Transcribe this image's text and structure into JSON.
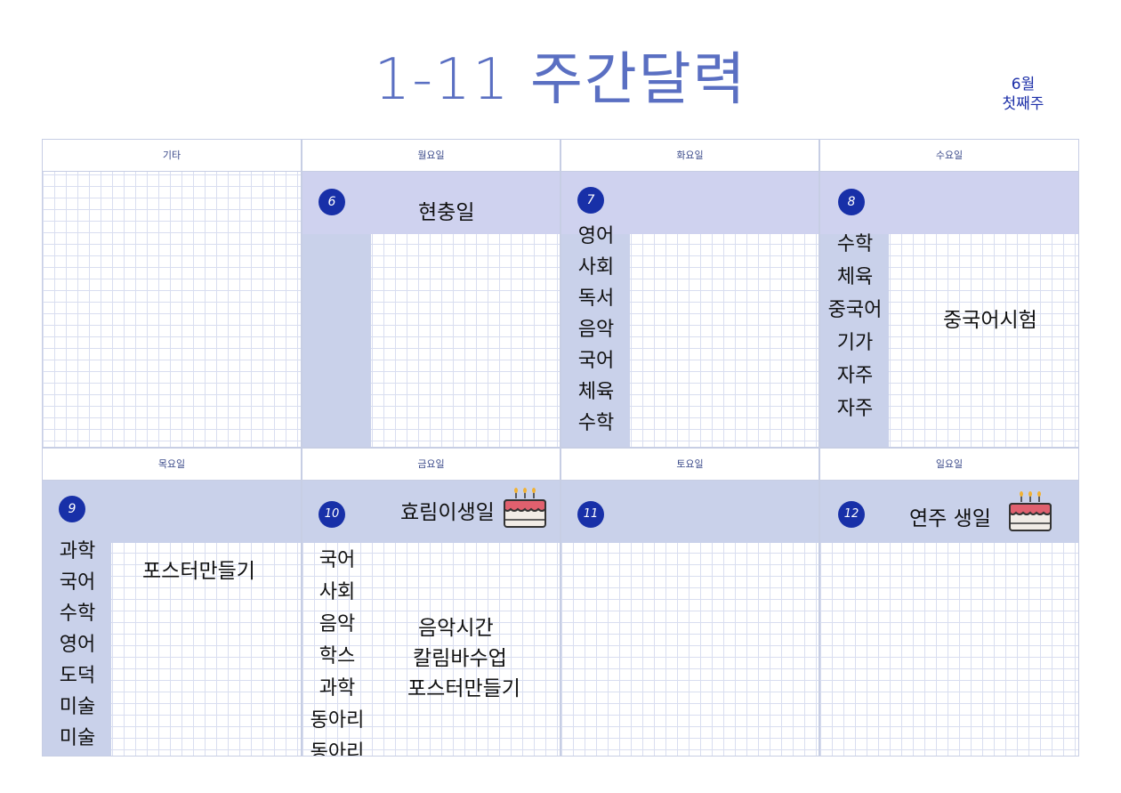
{
  "title": "1-11 주간달력",
  "week": {
    "month": "6월",
    "week": "첫째주"
  },
  "headers": {
    "etc": "기타",
    "mon": "월요일",
    "tue": "화요일",
    "wed": "수요일",
    "thu": "목요일",
    "fri": "금요일",
    "sat": "토요일",
    "sun": "일요일"
  },
  "days": {
    "mon": {
      "date": "6",
      "note": "현충일"
    },
    "tue": {
      "date": "7",
      "subjects": [
        "영어",
        "사회",
        "독서",
        "음악",
        "국어",
        "체육",
        "수학"
      ]
    },
    "wed": {
      "date": "8",
      "subjects": [
        "수학",
        "체육",
        "중국어",
        "기가",
        "자주",
        "자주"
      ],
      "note": "중국어시험"
    },
    "thu": {
      "date": "9",
      "subjects": [
        "과학",
        "국어",
        "수학",
        "영어",
        "도덕",
        "미술",
        "미술"
      ],
      "note": "포스터만들기"
    },
    "fri": {
      "date": "10",
      "title": "효림이생일",
      "subjects": [
        "국어",
        "사회",
        "음악",
        "학스",
        "과학",
        "동아리",
        "동아리"
      ],
      "notes": [
        "음악시간",
        "칼림바수업",
        "포스터만들기"
      ]
    },
    "sat": {
      "date": "11"
    },
    "sun": {
      "date": "12",
      "title": "연주 생일"
    }
  },
  "icons": {
    "cake": "birthday-cake-icon"
  },
  "colors": {
    "title": "#5a6fc2",
    "band": "#c9d1ea",
    "badge": "#1830a8",
    "cake_frosting": "#e0606e"
  }
}
